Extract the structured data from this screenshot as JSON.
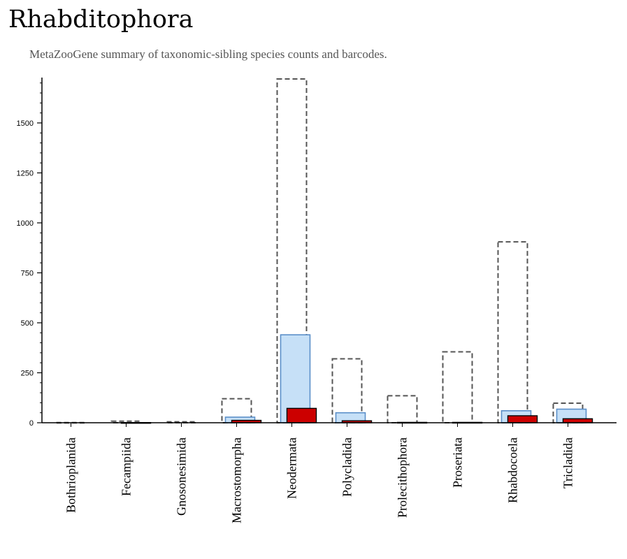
{
  "header": {
    "title": "Rhabditophora",
    "subtitle": "MetaZooGene summary of taxonomic-sibling species counts and barcodes."
  },
  "colors": {
    "outline_stroke": "#555555",
    "middle_fill": "#c6e0f7",
    "middle_stroke": "#5b8fc9",
    "inner_fill": "#cc0000",
    "inner_stroke": "#000000",
    "axis": "#000000"
  },
  "chart_data": {
    "type": "bar",
    "title": "Rhabditophora",
    "subtitle": "MetaZooGene summary of taxonomic-sibling species counts and barcodes.",
    "xlabel": "",
    "ylabel": "",
    "ylim": [
      0,
      1720
    ],
    "yticks": [
      0,
      250,
      500,
      750,
      1000,
      1250,
      1500
    ],
    "grid": false,
    "categories": [
      "Bothrioplanida",
      "Fecampiida",
      "Gnosonesimida",
      "Macrostomorpha",
      "Neodermata",
      "Polycladida",
      "Prolecithophora",
      "Proseriata",
      "Rhabdocoela",
      "Tricladida"
    ],
    "series": [
      {
        "values": [
          1,
          8,
          5,
          120,
          1720,
          320,
          135,
          355,
          905,
          98
        ]
      },
      {
        "values": [
          0,
          0,
          0,
          28,
          440,
          50,
          0,
          0,
          60,
          68
        ]
      },
      {
        "values": [
          0,
          1,
          0,
          12,
          72,
          10,
          2,
          2,
          35,
          20
        ]
      }
    ]
  }
}
